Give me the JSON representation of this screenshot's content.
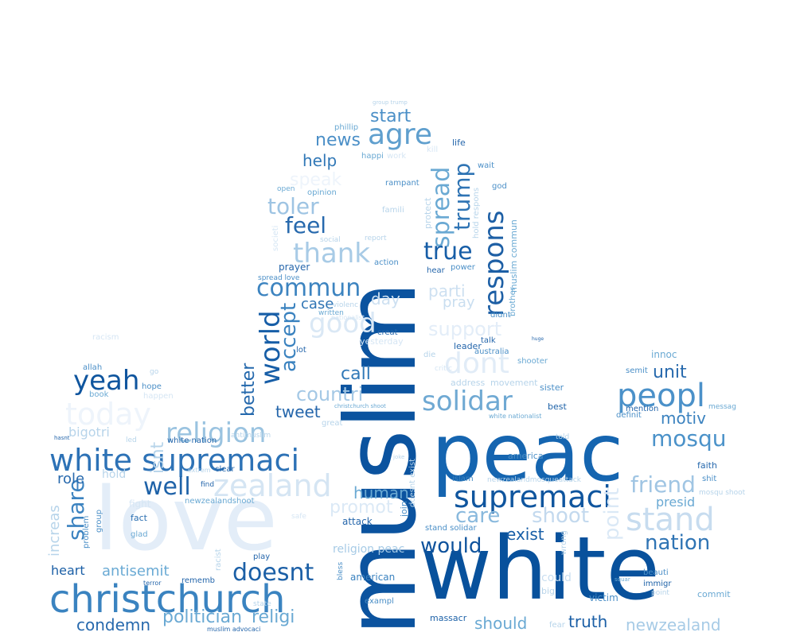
{
  "words": [
    {
      "id": "love",
      "text": "love",
      "color": "#e3edf8"
    },
    {
      "id": "white-big",
      "text": "white",
      "color": "#08519c"
    },
    {
      "id": "peac",
      "text": "peac",
      "color": "#1565b0"
    },
    {
      "id": "muslim",
      "text": "muslim",
      "color": "#0b539f"
    },
    {
      "id": "christchurch",
      "text": "christchurch",
      "color": "#3a83c0"
    },
    {
      "id": "white-supremaci",
      "text": "white supremaci",
      "color": "#2d72b6"
    },
    {
      "id": "supremaci",
      "text": "supremaci",
      "color": "#0f559e"
    },
    {
      "id": "peopl",
      "text": "peopl",
      "color": "#4b91c9"
    },
    {
      "id": "stand",
      "text": "stand",
      "color": "#c7dcef"
    },
    {
      "id": "religion",
      "text": "religion",
      "color": "#9ac3e0"
    },
    {
      "id": "zealand",
      "text": "zealand",
      "color": "#d5e5f3"
    },
    {
      "id": "today",
      "text": "today",
      "color": "#eef4fb"
    },
    {
      "id": "world",
      "text": "world",
      "color": "#175ea7"
    },
    {
      "id": "respons",
      "text": "respons",
      "color": "#1d5fa5"
    },
    {
      "id": "trump",
      "text": "trump",
      "color": "#2f74b4"
    },
    {
      "id": "spread",
      "text": "spread",
      "color": "#6aa9d3"
    },
    {
      "id": "true",
      "text": "true",
      "color": "#175ea7"
    },
    {
      "id": "good",
      "text": "good",
      "color": "#dae8f5"
    },
    {
      "id": "dont",
      "text": "dont",
      "color": "#e1ecf7"
    },
    {
      "id": "solidar",
      "text": "solidar",
      "color": "#6fa9d3"
    },
    {
      "id": "agre",
      "text": "agre",
      "color": "#5f9fce"
    },
    {
      "id": "thank",
      "text": "thank",
      "color": "#a8cbe6"
    },
    {
      "id": "commun",
      "text": "commun",
      "color": "#3d84c0"
    },
    {
      "id": "feel",
      "text": "feel",
      "color": "#2769ad"
    },
    {
      "id": "toler",
      "text": "toler",
      "color": "#9ec4e3"
    },
    {
      "id": "yeah",
      "text": "yeah",
      "color": "#0f559e"
    },
    {
      "id": "well",
      "text": "well",
      "color": "#1e62a8"
    },
    {
      "id": "doesnt",
      "text": "doesnt",
      "color": "#1b5fa6"
    },
    {
      "id": "share",
      "text": "share",
      "color": "#3c83c0"
    },
    {
      "id": "countri",
      "text": "countri",
      "color": "#a4c8e5"
    },
    {
      "id": "accept",
      "text": "accept",
      "color": "#3a82bf"
    },
    {
      "id": "mosqu",
      "text": "mosqu",
      "color": "#4b92c9"
    },
    {
      "id": "friend",
      "text": "friend",
      "color": "#a0c5e3"
    },
    {
      "id": "shoot",
      "text": "shoot",
      "color": "#c3d9ee"
    },
    {
      "id": "nation",
      "text": "nation",
      "color": "#2f74b4"
    },
    {
      "id": "would",
      "text": "would",
      "color": "#0e529c"
    },
    {
      "id": "care",
      "text": "care",
      "color": "#89b9dd"
    },
    {
      "id": "unit",
      "text": "unit",
      "color": "#2769ad"
    },
    {
      "id": "motiv",
      "text": "motiv",
      "color": "#3b82bf"
    },
    {
      "id": "tweet",
      "text": "tweet",
      "color": "#2566ab"
    },
    {
      "id": "call",
      "text": "call",
      "color": "#3179b8"
    },
    {
      "id": "better",
      "text": "better",
      "color": "#2468ac"
    },
    {
      "id": "help",
      "text": "help",
      "color": "#3178b7"
    },
    {
      "id": "news",
      "text": "news",
      "color": "#4b8fc7"
    },
    {
      "id": "start",
      "text": "start",
      "color": "#4b8fc7"
    },
    {
      "id": "support",
      "text": "support",
      "color": "#e3edf8"
    },
    {
      "id": "speak",
      "text": "speak",
      "color": "#eef4fb"
    },
    {
      "id": "parti",
      "text": "parti",
      "color": "#cde0f1"
    },
    {
      "id": "pray",
      "text": "pray",
      "color": "#c9def0"
    },
    {
      "id": "day",
      "text": "day",
      "color": "#cde0f1"
    },
    {
      "id": "case",
      "text": "case",
      "color": "#2f74b4"
    },
    {
      "id": "antisemit",
      "text": "antisemit",
      "color": "#6aaad4"
    },
    {
      "id": "condemn",
      "text": "condemn",
      "color": "#2769ad"
    },
    {
      "id": "politician",
      "text": "politician",
      "color": "#6aa9d3"
    },
    {
      "id": "religi",
      "text": "religi",
      "color": "#6aa9d3"
    },
    {
      "id": "truth",
      "text": "truth",
      "color": "#1b5fa6"
    },
    {
      "id": "should",
      "text": "should",
      "color": "#6aa9d3"
    },
    {
      "id": "newzealand",
      "text": "newzealand",
      "color": "#a7cbe6"
    },
    {
      "id": "role",
      "text": "role",
      "color": "#2769ad"
    },
    {
      "id": "heart",
      "text": "heart",
      "color": "#1b5fa6"
    },
    {
      "id": "increas",
      "text": "increas",
      "color": "#b7d4ea"
    },
    {
      "id": "human",
      "text": "human",
      "color": "#6aa9d3"
    },
    {
      "id": "promot",
      "text": "promot",
      "color": "#dbe9f6"
    },
    {
      "id": "exist",
      "text": "exist",
      "color": "#175ea7"
    },
    {
      "id": "point",
      "text": "point",
      "color": "#dbe9f6"
    },
    {
      "id": "presid",
      "text": "presid",
      "color": "#6aa9d3"
    },
    {
      "id": "bigotri",
      "text": "bigotri",
      "color": "#b7d4ea"
    },
    {
      "id": "isnt",
      "text": "isnt",
      "color": "#b7d4ea"
    },
    {
      "id": "hold",
      "text": "hold",
      "color": "#b7d4ea"
    },
    {
      "id": "fight",
      "text": "fight",
      "color": "#d6e6f4"
    },
    {
      "id": "fact",
      "text": "fact",
      "color": "#2b6fb1"
    },
    {
      "id": "attack",
      "text": "attack",
      "color": "#2566ab"
    },
    {
      "id": "stand-solidar",
      "text": "stand solidar",
      "color": "#4b8fc7"
    },
    {
      "id": "religion-peac",
      "text": "religion peac",
      "color": "#a7cbe6"
    },
    {
      "id": "american",
      "text": "american",
      "color": "#3a82bf"
    },
    {
      "id": "exampl",
      "text": "exampl",
      "color": "#4b8fc7"
    },
    {
      "id": "massacr",
      "text": "massacr",
      "color": "#1e62a8"
    },
    {
      "id": "victim",
      "text": "victim",
      "color": "#4b8fc7"
    },
    {
      "id": "beauti",
      "text": "beauti",
      "color": "#4b8fc7"
    },
    {
      "id": "immigr",
      "text": "immigr",
      "color": "#1e62a8"
    },
    {
      "id": "commit",
      "text": "commit",
      "color": "#6aa9d3"
    },
    {
      "id": "point-small",
      "text": "point",
      "color": "#b7d4ea"
    },
    {
      "id": "could",
      "text": "could",
      "color": "#c9def0"
    },
    {
      "id": "big",
      "text": "big",
      "color": "#b7d4ea"
    },
    {
      "id": "fear",
      "text": "fear",
      "color": "#b7d4ea"
    },
    {
      "id": "islam",
      "text": "islam",
      "color": "#3a82bf"
    },
    {
      "id": "america",
      "text": "america",
      "color": "#4b8fc7"
    },
    {
      "id": "told",
      "text": "told",
      "color": "#b7d4ea"
    },
    {
      "id": "faith",
      "text": "faith",
      "color": "#2769ad"
    },
    {
      "id": "mention",
      "text": "mention",
      "color": "#2566ab"
    },
    {
      "id": "definit",
      "text": "definit",
      "color": "#4b8fc7"
    },
    {
      "id": "innoc",
      "text": "innoc",
      "color": "#6aa9d3"
    },
    {
      "id": "semit",
      "text": "semit",
      "color": "#4b8fc7"
    },
    {
      "id": "messag",
      "text": "messag",
      "color": "#6aa9d3"
    },
    {
      "id": "shit",
      "text": "shit",
      "color": "#4b8fc7"
    },
    {
      "id": "mosqu-shoot",
      "text": "mosqu shoot",
      "color": "#b7d4ea"
    },
    {
      "id": "best",
      "text": "best",
      "color": "#1e62a8"
    },
    {
      "id": "sister",
      "text": "sister",
      "color": "#4b8fc7"
    },
    {
      "id": "shooter",
      "text": "shooter",
      "color": "#6aa9d3"
    },
    {
      "id": "address",
      "text": "address",
      "color": "#b7d4ea"
    },
    {
      "id": "movement",
      "text": "movement",
      "color": "#b7d4ea"
    },
    {
      "id": "leader",
      "text": "leader",
      "color": "#2566ab"
    },
    {
      "id": "australia",
      "text": "australia",
      "color": "#4b8fc7"
    },
    {
      "id": "talk",
      "text": "talk",
      "color": "#2566ab"
    },
    {
      "id": "didnt",
      "text": "didnt",
      "color": "#4b8fc7"
    },
    {
      "id": "yesterday",
      "text": "yesterday",
      "color": "#d6e6f4"
    },
    {
      "id": "creat",
      "text": "creat",
      "color": "#2566ab"
    },
    {
      "id": "lot",
      "text": "lot",
      "color": "#2566ab"
    },
    {
      "id": "die",
      "text": "die",
      "color": "#b7d4ea"
    },
    {
      "id": "violenc",
      "text": "violenc",
      "color": "#b7d4ea"
    },
    {
      "id": "written",
      "text": "written",
      "color": "#6aa9d3"
    },
    {
      "id": "hear",
      "text": "hear",
      "color": "#2566ab"
    },
    {
      "id": "power",
      "text": "power",
      "color": "#4b8fc7"
    },
    {
      "id": "prayer",
      "text": "prayer",
      "color": "#2566ab"
    },
    {
      "id": "spread-love",
      "text": "spread love",
      "color": "#4b8fc7"
    },
    {
      "id": "action",
      "text": "action",
      "color": "#4b8fc7"
    },
    {
      "id": "social",
      "text": "social",
      "color": "#b7d4ea"
    },
    {
      "id": "report",
      "text": "report",
      "color": "#b7d4ea"
    },
    {
      "id": "open",
      "text": "open",
      "color": "#6aa9d3"
    },
    {
      "id": "opinion",
      "text": "opinion",
      "color": "#6aa9d3"
    },
    {
      "id": "rampant",
      "text": "rampant",
      "color": "#4b8fc7"
    },
    {
      "id": "famili",
      "text": "famili",
      "color": "#b7d4ea"
    },
    {
      "id": "protect",
      "text": "protect",
      "color": "#b7d4ea"
    },
    {
      "id": "phillip",
      "text": "phillip",
      "color": "#6aa9d3"
    },
    {
      "id": "happi",
      "text": "happi",
      "color": "#6aa9d3"
    },
    {
      "id": "work",
      "text": "work",
      "color": "#d6e6f4"
    },
    {
      "id": "life",
      "text": "life",
      "color": "#2566ab"
    },
    {
      "id": "wait",
      "text": "wait",
      "color": "#4b8fc7"
    },
    {
      "id": "god",
      "text": "god",
      "color": "#4b8fc7"
    },
    {
      "id": "kill",
      "text": "kill",
      "color": "#d6e6f4"
    },
    {
      "id": "muslim-commun",
      "text": "muslim commun",
      "color": "#6aa9d3"
    },
    {
      "id": "brother",
      "text": "brother",
      "color": "#6aa9d3"
    },
    {
      "id": "hold-respons",
      "text": "hold respons",
      "color": "#b7d4ea"
    },
    {
      "id": "group-trump",
      "text": "group trump",
      "color": "#b7d4ea"
    },
    {
      "id": "allah",
      "text": "allah",
      "color": "#4b8fc7"
    },
    {
      "id": "hope",
      "text": "hope",
      "color": "#4b8fc7"
    },
    {
      "id": "go",
      "text": "go",
      "color": "#b7d4ea"
    },
    {
      "id": "racism",
      "text": "racism",
      "color": "#d6e6f4"
    },
    {
      "id": "happen",
      "text": "happen",
      "color": "#d6e6f4"
    },
    {
      "id": "book",
      "text": "book",
      "color": "#6aa9d3"
    },
    {
      "id": "hasnt",
      "text": "hasnt",
      "color": "#2566ab"
    },
    {
      "id": "led",
      "text": "led",
      "color": "#b7d4ea"
    },
    {
      "id": "white-nation",
      "text": "white nation",
      "color": "#2566ab"
    },
    {
      "id": "antimuslim",
      "text": "antimuslim",
      "color": "#b7d4ea"
    },
    {
      "id": "white-nationalist",
      "text": "white nationalist",
      "color": "#6aa9d3"
    },
    {
      "id": "great",
      "text": "great",
      "color": "#b7d4ea"
    },
    {
      "id": "clear",
      "text": "clear",
      "color": "#2566ab"
    },
    {
      "id": "extrem",
      "text": "extrem",
      "color": "#b7d4ea"
    },
    {
      "id": "find",
      "text": "find",
      "color": "#2566ab"
    },
    {
      "id": "newzealandshoot",
      "text": "newzealandshoot",
      "color": "#6aa9d3"
    },
    {
      "id": "newzealandmosqueattack",
      "text": "newzealandmosqueattack",
      "color": "#b7d4ea"
    },
    {
      "id": "group",
      "text": "group",
      "color": "#4b8fc7"
    },
    {
      "id": "problem",
      "text": "problem",
      "color": "#4b8fc7"
    },
    {
      "id": "glad",
      "text": "glad",
      "color": "#6aa9d3"
    },
    {
      "id": "racist",
      "text": "racist",
      "color": "#b7d4ea"
    },
    {
      "id": "play",
      "text": "play",
      "color": "#2566ab"
    },
    {
      "id": "rememb",
      "text": "rememb",
      "color": "#2566ab"
    },
    {
      "id": "terror",
      "text": "terror",
      "color": "#2566ab"
    },
    {
      "id": "bless",
      "text": "bless",
      "color": "#4b8fc7"
    },
    {
      "id": "state",
      "text": "state",
      "color": "#b7d4ea"
    },
    {
      "id": "muslim-advocaci",
      "text": "muslim advocaci",
      "color": "#2566ab"
    },
    {
      "id": "join",
      "text": "join",
      "color": "#4b8fc7"
    },
    {
      "id": "doesnt-exist",
      "text": "doesnt exist",
      "color": "#b7d4ea"
    },
    {
      "id": "wrong",
      "text": "wrong",
      "color": "#b7d4ea"
    },
    {
      "id": "societi",
      "text": "societi",
      "color": "#d6e6f4"
    },
    {
      "id": "christchurch-shoot",
      "text": "christchurch shoot",
      "color": "#6aa9d3"
    },
    {
      "id": "joke",
      "text": "joke",
      "color": "#b7d4ea"
    },
    {
      "id": "huge",
      "text": "huge",
      "color": "#2566ab"
    },
    {
      "id": "squar",
      "text": "squar",
      "color": "#6aa9d3"
    },
    {
      "id": "critic",
      "text": "critic",
      "color": "#d6e6f4"
    },
    {
      "id": "safe",
      "text": "safe",
      "color": "#d6e6f4"
    },
    {
      "id": "nationalist",
      "text": "nationalist",
      "color": "#d6e6f4"
    }
  ]
}
